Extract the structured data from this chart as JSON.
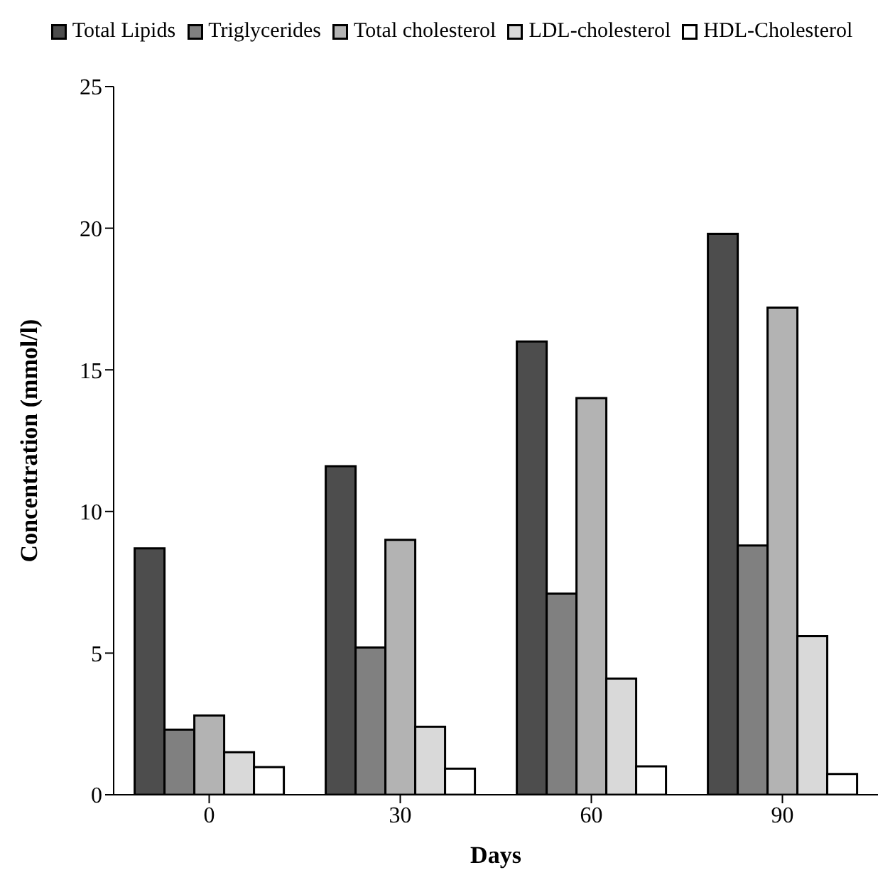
{
  "chart_data": {
    "type": "bar",
    "xlabel": "Days",
    "ylabel": "Concentration (mmol/l)",
    "categories": [
      "0",
      "30",
      "60",
      "90"
    ],
    "series": [
      {
        "name": "Total Lipids",
        "color": "#4d4d4d",
        "values": [
          8.7,
          11.6,
          16.0,
          19.8
        ]
      },
      {
        "name": "Triglycerides",
        "color": "#808080",
        "values": [
          2.3,
          5.2,
          7.1,
          8.8
        ]
      },
      {
        "name": "Total cholesterol",
        "color": "#b3b3b3",
        "values": [
          2.8,
          9.0,
          14.0,
          17.2
        ]
      },
      {
        "name": "LDL-cholesterol",
        "color": "#d9d9d9",
        "values": [
          1.5,
          2.4,
          4.1,
          5.6
        ]
      },
      {
        "name": "HDL-Cholesterol",
        "color": "#ffffff",
        "values": [
          0.98,
          0.92,
          1.0,
          0.73
        ]
      }
    ],
    "ylim": [
      0,
      25
    ],
    "yticks": [
      0,
      5,
      10,
      15,
      20,
      25
    ],
    "grid": false,
    "legend": "top"
  }
}
